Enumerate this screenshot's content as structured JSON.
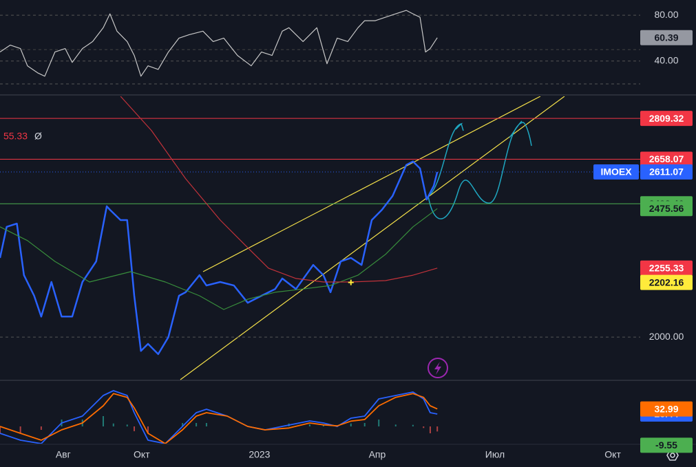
{
  "chart_data": [
    {
      "type": "line",
      "name": "rsi",
      "xlim": [
        -0.61,
        15.7
      ],
      "ylim": [
        20.6,
        93.3
      ],
      "yticks": [
        {
          "value": 80,
          "label": "80.00"
        },
        {
          "value": 40,
          "label": "40.00"
        }
      ],
      "midline": 50,
      "series": [
        {
          "color": "#c8c8c8",
          "x": [
            -0.61,
            -0.35,
            -0.09,
            0.09,
            0.35,
            0.53,
            0.79,
            1.05,
            1.23,
            1.49,
            1.75,
            2.02,
            2.19,
            2.37,
            2.63,
            2.81,
            2.98,
            3.16,
            3.42,
            3.68,
            3.95,
            4.21,
            4.56,
            4.82,
            5.09,
            5.44,
            5.79,
            6.05,
            6.32,
            6.58,
            6.75,
            7.11,
            7.46,
            7.72,
            7.98,
            8.25,
            8.51,
            8.68,
            8.95,
            9.21,
            9.47,
            9.74,
            9.91,
            10.09,
            10.23,
            10.35,
            10.53
          ],
          "values": [
            47.9,
            53.9,
            50.9,
            35.8,
            29.7,
            26.7,
            47.9,
            50.9,
            38.8,
            50.9,
            57,
            69.1,
            81.2,
            66.1,
            57,
            44.9,
            26.7,
            35.8,
            32.7,
            47.9,
            60,
            63,
            66.1,
            57,
            60,
            44.9,
            35.8,
            47.9,
            44.9,
            66.1,
            69.1,
            57,
            69.1,
            37.6,
            60,
            57,
            69.1,
            75.2,
            75.2,
            78.2,
            81.2,
            84.2,
            81.2,
            78.2,
            47.9,
            50.9,
            60.39
          ]
        }
      ]
    },
    {
      "type": "line",
      "name": "price",
      "xlim": [
        -0.61,
        15.7
      ],
      "ylim": [
        1840,
        2891
      ],
      "yticks": [
        {
          "value": 2000,
          "label": "2000.00"
        }
      ],
      "symbol": "IMOEX",
      "ma_legend_value": "55.33",
      "ma_legend_symbol": "Ø",
      "levels": [
        {
          "value": 2809.32,
          "color": "#f23645"
        },
        {
          "value": 2658.07,
          "color": "#f23645"
        },
        {
          "value": 2493.46,
          "color": "#4caf50"
        }
      ],
      "crosshair": {
        "x": 8.33,
        "y": 2202.16,
        "color": "#ffeb3b"
      },
      "series": [
        {
          "color": "#2962ff",
          "x": [
            -0.61,
            -0.44,
            -0.18,
            0,
            0.26,
            0.44,
            0.7,
            0.96,
            1.23,
            1.49,
            1.84,
            2.11,
            2.19,
            2.46,
            2.63,
            2.81,
            2.98,
            3.16,
            3.42,
            3.68,
            3.95,
            4.12,
            4.47,
            4.65,
            5,
            5.35,
            5.7,
            6.05,
            6.4,
            6.58,
            6.93,
            7.37,
            7.63,
            7.81,
            8.07,
            8.33,
            8.6,
            8.86,
            9.12,
            9.39,
            9.74,
            9.91,
            10.09,
            10.26,
            10.44,
            10.53
          ],
          "values": [
            2293,
            2408,
            2420,
            2229,
            2153,
            2076,
            2204,
            2076,
            2076,
            2204,
            2280,
            2484,
            2471,
            2433,
            2433,
            2153,
            1949,
            1975,
            1937,
            2000,
            2153,
            2166,
            2229,
            2191,
            2204,
            2191,
            2127,
            2153,
            2178,
            2217,
            2178,
            2267,
            2229,
            2166,
            2280,
            2293,
            2267,
            2433,
            2471,
            2522,
            2637,
            2650,
            2624,
            2509,
            2560,
            2611.07
          ]
        },
        {
          "color": "#388e3c",
          "x": [
            -0.61,
            0.09,
            0.79,
            1.67,
            2.72,
            3.6,
            4.47,
            5.09,
            5.7,
            6.4,
            7.11,
            7.81,
            8.51,
            9.21,
            9.91,
            10.53
          ],
          "values": [
            2408,
            2357,
            2280,
            2204,
            2242,
            2204,
            2153,
            2102,
            2140,
            2166,
            2178,
            2191,
            2229,
            2306,
            2408,
            2475.56
          ]
        },
        {
          "color": "#c2323a",
          "x": [
            2.46,
            3.25,
            4.12,
            5,
            5.7,
            6.23,
            6.93,
            7.63,
            8.33,
            9.21,
            9.91,
            10.53
          ],
          "values": [
            2891,
            2764,
            2586,
            2433,
            2331,
            2255,
            2217,
            2204,
            2204,
            2209,
            2229,
            2255.33
          ]
        }
      ]
    },
    {
      "type": "macd",
      "name": "macd",
      "xlim": [
        -0.61,
        15.7
      ],
      "ylim": [
        -32.5,
        84.5
      ],
      "xticks": [
        {
          "value": 1,
          "label": "Авг"
        },
        {
          "value": 3,
          "label": "Окт"
        },
        {
          "value": 6,
          "label": "2023"
        },
        {
          "value": 9,
          "label": "Апр"
        },
        {
          "value": 12,
          "label": "Июл"
        },
        {
          "value": 15,
          "label": "Окт"
        }
      ],
      "x": [
        -0.61,
        -0.09,
        0.44,
        0.96,
        1.49,
        2.02,
        2.28,
        2.63,
        2.81,
        3.16,
        3.6,
        4.04,
        4.39,
        4.65,
        5.18,
        5.7,
        6.14,
        6.75,
        7.28,
        7.63,
        7.98,
        8.33,
        8.68,
        9.04,
        9.47,
        9.91,
        10.18,
        10.35,
        10.53
      ],
      "series": [
        {
          "name": "histogram",
          "color": "#26a69a",
          "color_down": "#ef5350",
          "values": [
            -13,
            -13,
            -6.5,
            13,
            13,
            19.5,
            5.6,
            3.5,
            -9,
            -13,
            0,
            6.5,
            6.5,
            6.5,
            0,
            0,
            0,
            5.6,
            3.9,
            3.5,
            -1,
            5.6,
            6.5,
            13,
            3.5,
            3,
            -3,
            -13,
            -9.55
          ]
        },
        {
          "name": "macd",
          "color": "#2962ff",
          "values": [
            -13,
            -26,
            -32.5,
            6.5,
            19.5,
            58.5,
            67.6,
            58.5,
            26,
            -26,
            -32.5,
            0,
            26,
            32.5,
            19.5,
            0,
            -6.5,
            2.6,
            10.4,
            6.5,
            0,
            15.6,
            19.5,
            52,
            58.5,
            65,
            52,
            26,
            23.44
          ]
        },
        {
          "name": "signal",
          "color": "#ff6d00",
          "values": [
            0,
            -13,
            -26,
            -6.5,
            6.5,
            39,
            62,
            55,
            35,
            -13,
            -32.5,
            -6.5,
            19.5,
            26,
            19.5,
            0,
            -6.5,
            -3,
            6.5,
            3,
            1,
            10,
            13,
            39,
            55,
            62,
            55,
            39,
            32.99
          ]
        }
      ]
    }
  ]
}
